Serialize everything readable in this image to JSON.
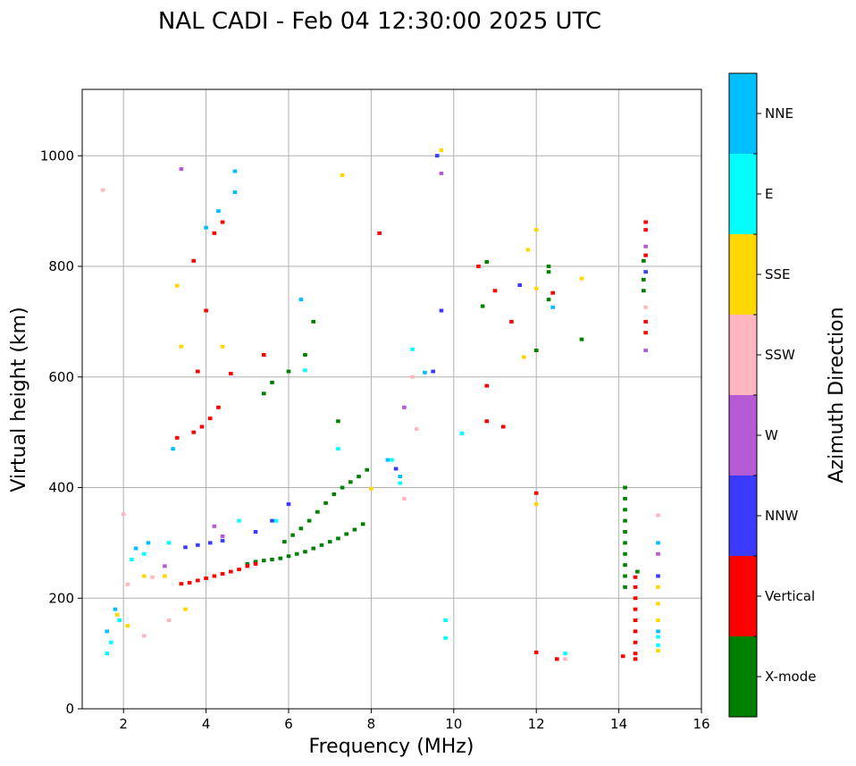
{
  "chart_data": {
    "type": "scatter",
    "title": "NAL CADI - Feb 04 12:30:00 2025 UTC",
    "xlabel": "Frequency (MHz)",
    "ylabel": "Virtual height (km)",
    "xlim": [
      1,
      16
    ],
    "ylim": [
      0,
      1120
    ],
    "xticks": [
      2,
      4,
      6,
      8,
      10,
      12,
      14,
      16
    ],
    "xtick_labels": [
      "2",
      "4",
      "6",
      "8",
      "10",
      "12",
      "14",
      "16"
    ],
    "yticks": [
      0,
      200,
      400,
      600,
      800,
      1000
    ],
    "ytick_labels": [
      "0",
      "200",
      "400",
      "600",
      "800",
      "1000"
    ],
    "grid": true,
    "colorbar": {
      "title": "Azimuth Direction",
      "categories": [
        {
          "name": "X-mode",
          "color": "#008000"
        },
        {
          "name": "Vertical",
          "color": "#ff0000"
        },
        {
          "name": "NNW",
          "color": "#3b3bff"
        },
        {
          "name": "W",
          "color": "#b65ad6"
        },
        {
          "name": "SSW",
          "color": "#ffb6c1"
        },
        {
          "name": "SSE",
          "color": "#ffd700"
        },
        {
          "name": "E",
          "color": "#00ffff"
        },
        {
          "name": "NNE",
          "color": "#00bfff"
        }
      ]
    },
    "series": [
      {
        "name": "X-mode",
        "points": [
          [
            5.0,
            262
          ],
          [
            5.2,
            266
          ],
          [
            5.4,
            268
          ],
          [
            5.6,
            270
          ],
          [
            5.8,
            272
          ],
          [
            6.0,
            276
          ],
          [
            6.2,
            280
          ],
          [
            6.4,
            284
          ],
          [
            6.6,
            290
          ],
          [
            6.8,
            296
          ],
          [
            7.0,
            302
          ],
          [
            7.2,
            308
          ],
          [
            7.4,
            316
          ],
          [
            7.6,
            324
          ],
          [
            7.8,
            334
          ],
          [
            5.9,
            302
          ],
          [
            6.1,
            314
          ],
          [
            6.3,
            326
          ],
          [
            6.5,
            340
          ],
          [
            6.7,
            356
          ],
          [
            6.9,
            372
          ],
          [
            7.1,
            388
          ],
          [
            7.3,
            400
          ],
          [
            7.5,
            410
          ],
          [
            7.7,
            420
          ],
          [
            7.9,
            432
          ],
          [
            5.4,
            570
          ],
          [
            5.6,
            590
          ],
          [
            6.0,
            610
          ],
          [
            6.4,
            640
          ],
          [
            6.6,
            700
          ],
          [
            7.2,
            520
          ],
          [
            10.7,
            728
          ],
          [
            10.8,
            808
          ],
          [
            12.3,
            800
          ],
          [
            12.3,
            790
          ],
          [
            12.3,
            740
          ],
          [
            13.1,
            668
          ],
          [
            12.0,
            648
          ],
          [
            14.15,
            400
          ],
          [
            14.15,
            380
          ],
          [
            14.15,
            360
          ],
          [
            14.15,
            340
          ],
          [
            14.15,
            320
          ],
          [
            14.15,
            300
          ],
          [
            14.15,
            280
          ],
          [
            14.15,
            260
          ],
          [
            14.15,
            240
          ],
          [
            14.15,
            220
          ],
          [
            14.45,
            248
          ],
          [
            14.6,
            776
          ],
          [
            14.6,
            756
          ],
          [
            14.6,
            810
          ]
        ]
      },
      {
        "name": "Vertical",
        "points": [
          [
            3.4,
            226
          ],
          [
            3.6,
            228
          ],
          [
            3.8,
            232
          ],
          [
            4.0,
            236
          ],
          [
            4.2,
            240
          ],
          [
            4.4,
            244
          ],
          [
            4.6,
            248
          ],
          [
            4.8,
            252
          ],
          [
            5.0,
            258
          ],
          [
            5.2,
            262
          ],
          [
            3.3,
            490
          ],
          [
            3.7,
            500
          ],
          [
            3.9,
            510
          ],
          [
            4.1,
            525
          ],
          [
            4.3,
            545
          ],
          [
            3.8,
            610
          ],
          [
            4.0,
            720
          ],
          [
            4.2,
            860
          ],
          [
            4.4,
            880
          ],
          [
            3.7,
            810
          ],
          [
            4.6,
            606
          ],
          [
            5.4,
            640
          ],
          [
            8.2,
            860
          ],
          [
            10.8,
            584
          ],
          [
            10.8,
            520
          ],
          [
            11.2,
            510
          ],
          [
            10.6,
            800
          ],
          [
            11.0,
            756
          ],
          [
            11.4,
            700
          ],
          [
            12.4,
            752
          ],
          [
            12.0,
            390
          ],
          [
            12.5,
            90
          ],
          [
            12.0,
            102
          ],
          [
            14.4,
            238
          ],
          [
            14.4,
            220
          ],
          [
            14.4,
            200
          ],
          [
            14.4,
            180
          ],
          [
            14.4,
            160
          ],
          [
            14.4,
            140
          ],
          [
            14.4,
            120
          ],
          [
            14.4,
            100
          ],
          [
            14.4,
            90
          ],
          [
            14.1,
            95
          ],
          [
            14.65,
            880
          ],
          [
            14.65,
            866
          ],
          [
            14.65,
            820
          ],
          [
            14.65,
            700
          ],
          [
            14.65,
            680
          ]
        ]
      },
      {
        "name": "NNW",
        "points": [
          [
            3.5,
            292
          ],
          [
            3.8,
            296
          ],
          [
            4.1,
            300
          ],
          [
            4.4,
            304
          ],
          [
            5.2,
            320
          ],
          [
            5.6,
            340
          ],
          [
            6.0,
            370
          ],
          [
            8.6,
            434
          ],
          [
            9.5,
            610
          ],
          [
            9.6,
            1000
          ],
          [
            9.7,
            720
          ],
          [
            11.6,
            766
          ],
          [
            14.65,
            790
          ],
          [
            14.95,
            240
          ]
        ]
      },
      {
        "name": "W",
        "points": [
          [
            3.0,
            258
          ],
          [
            4.2,
            330
          ],
          [
            4.4,
            312
          ],
          [
            3.4,
            976
          ],
          [
            9.7,
            968
          ],
          [
            8.8,
            545
          ],
          [
            14.65,
            836
          ],
          [
            14.65,
            648
          ],
          [
            14.95,
            280
          ]
        ]
      },
      {
        "name": "SSW",
        "points": [
          [
            1.5,
            938
          ],
          [
            2.0,
            352
          ],
          [
            2.1,
            225
          ],
          [
            2.5,
            132
          ],
          [
            2.7,
            238
          ],
          [
            3.1,
            160
          ],
          [
            8.8,
            380
          ],
          [
            9.0,
            600
          ],
          [
            9.1,
            506
          ],
          [
            12.7,
            90
          ],
          [
            14.65,
            726
          ],
          [
            14.95,
            350
          ]
        ]
      },
      {
        "name": "SSE",
        "points": [
          [
            1.85,
            170
          ],
          [
            2.1,
            150
          ],
          [
            2.5,
            240
          ],
          [
            3.0,
            240
          ],
          [
            3.3,
            765
          ],
          [
            3.4,
            655
          ],
          [
            3.5,
            180
          ],
          [
            4.4,
            655
          ],
          [
            7.3,
            965
          ],
          [
            8.0,
            398
          ],
          [
            9.7,
            1010
          ],
          [
            11.8,
            830
          ],
          [
            12.0,
            866
          ],
          [
            12.0,
            370
          ],
          [
            12.0,
            760
          ],
          [
            13.1,
            778
          ],
          [
            11.7,
            636
          ],
          [
            14.95,
            220
          ],
          [
            14.95,
            190
          ],
          [
            14.95,
            160
          ],
          [
            14.95,
            105
          ]
        ]
      },
      {
        "name": "E",
        "points": [
          [
            1.6,
            100
          ],
          [
            1.7,
            120
          ],
          [
            1.9,
            160
          ],
          [
            2.2,
            270
          ],
          [
            2.5,
            280
          ],
          [
            3.1,
            300
          ],
          [
            4.8,
            340
          ],
          [
            5.7,
            340
          ],
          [
            6.4,
            612
          ],
          [
            7.2,
            470
          ],
          [
            8.5,
            450
          ],
          [
            8.7,
            408
          ],
          [
            9.0,
            650
          ],
          [
            9.8,
            160
          ],
          [
            9.8,
            128
          ],
          [
            10.2,
            498
          ],
          [
            12.7,
            100
          ],
          [
            14.95,
            130
          ],
          [
            14.95,
            115
          ]
        ]
      },
      {
        "name": "NNE",
        "points": [
          [
            1.6,
            140
          ],
          [
            1.8,
            180
          ],
          [
            2.3,
            290
          ],
          [
            2.6,
            300
          ],
          [
            3.2,
            470
          ],
          [
            4.0,
            870
          ],
          [
            4.3,
            900
          ],
          [
            4.7,
            972
          ],
          [
            4.7,
            934
          ],
          [
            6.3,
            740
          ],
          [
            8.4,
            450
          ],
          [
            8.7,
            420
          ],
          [
            9.3,
            608
          ],
          [
            12.4,
            726
          ],
          [
            14.95,
            300
          ],
          [
            14.95,
            140
          ]
        ]
      }
    ]
  }
}
